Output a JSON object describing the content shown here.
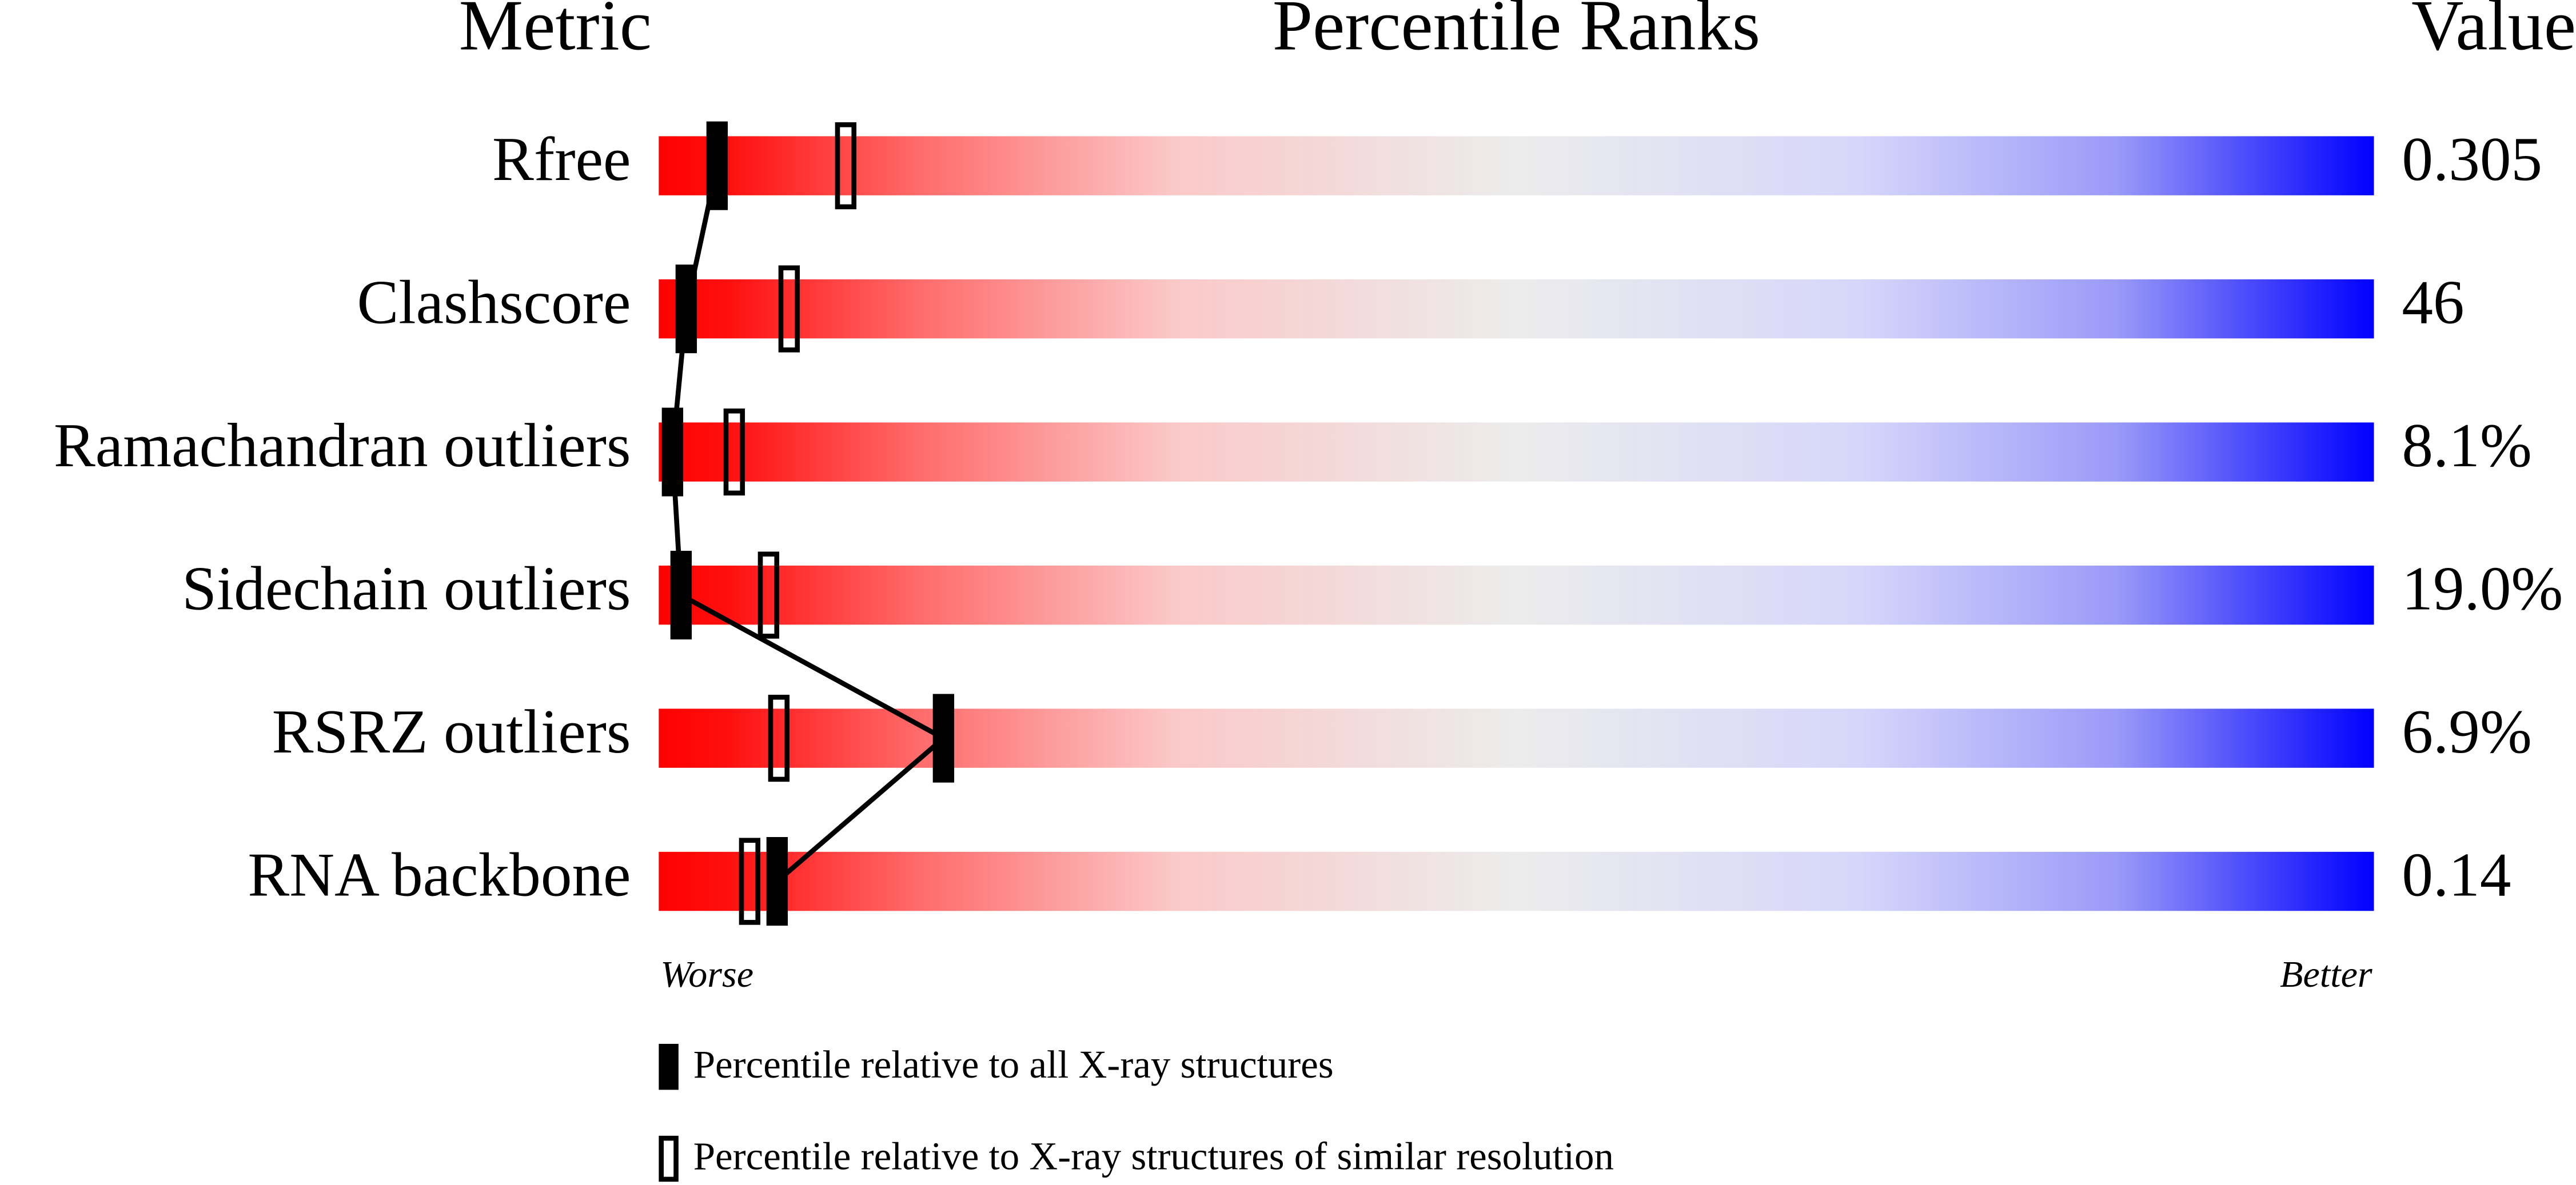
{
  "chart_data": {
    "type": "percentile-slider",
    "title": "Percentile Ranks",
    "metric_header": "Metric",
    "value_header": "Value",
    "categories": [
      "Rfree",
      "Clashscore",
      "Ramachandran outliers",
      "Sidechain outliers",
      "RSRZ outliers",
      "RNA backbone"
    ],
    "metric_values": [
      "0.305",
      "46",
      "8.1%",
      "19.0%",
      "6.9%",
      "0.14"
    ],
    "xlim": [
      0,
      100
    ],
    "x_start_label": "Worse",
    "x_end_label": "Better",
    "series": [
      {
        "name": "Percentile relative to all X-ray structures",
        "color": "#000000",
        "style": "filled",
        "values": [
          3.4,
          1.6,
          0.8,
          1.3,
          16.6,
          6.9
        ]
      },
      {
        "name": "Percentile relative to X-ray structures of similar resolution",
        "color": "#000000",
        "style": "open",
        "values": [
          10.9,
          7.6,
          4.4,
          6.4,
          7.0,
          5.3
        ]
      }
    ]
  }
}
